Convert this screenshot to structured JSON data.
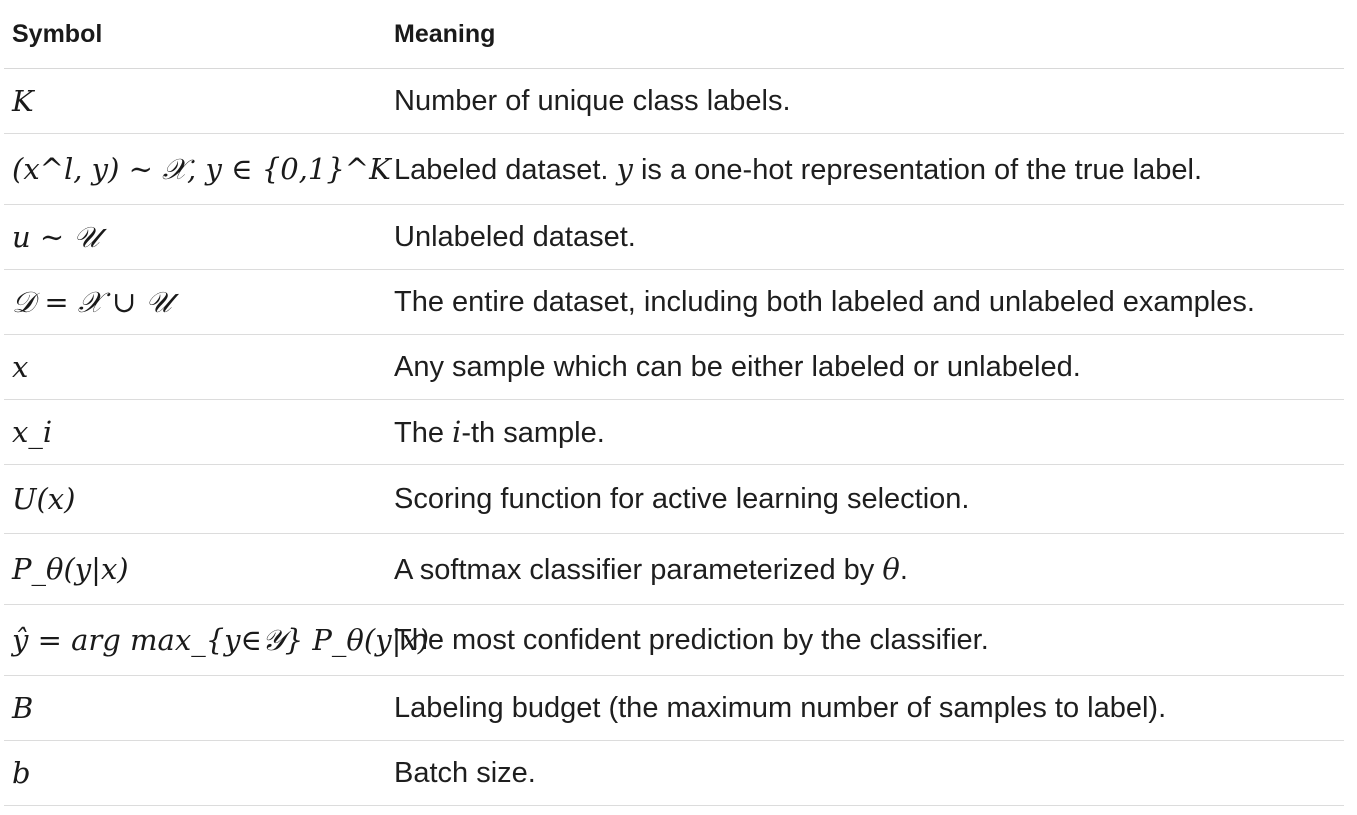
{
  "header": {
    "symbol": "Symbol",
    "meaning": "Meaning"
  },
  "rows": [
    {
      "symbol": "K",
      "meaning": "Number of unique class labels."
    },
    {
      "symbol": "(x^l, y) ∼ 𝒳, y ∈ {0,1}^K",
      "meaning_pre": "Labeled dataset.",
      "meaning_var": "y",
      "meaning_post": "is a one-hot representation of the true label."
    },
    {
      "symbol": "u ∼ 𝒰",
      "meaning": "Unlabeled dataset."
    },
    {
      "symbol": "𝒟 = 𝒳 ∪ 𝒰",
      "meaning": "The entire dataset, including both labeled and unlabeled examples."
    },
    {
      "symbol": "x",
      "meaning": "Any sample which can be either labeled or unlabeled."
    },
    {
      "symbol": "x_i",
      "meaning_pre": "The",
      "meaning_var": "i",
      "meaning_post": "-th sample."
    },
    {
      "symbol": "U(x)",
      "meaning": "Scoring function for active learning selection."
    },
    {
      "symbol": "P_θ(y|x)",
      "meaning_pre": "A softmax classifier parameterized by",
      "meaning_var": "θ",
      "meaning_post": "."
    },
    {
      "symbol": "ŷ = arg max_{y∈𝒴} P_θ(y|x)",
      "meaning": "The most confident prediction by the classifier."
    },
    {
      "symbol": "B",
      "meaning": "Labeling budget (the maximum number of samples to label)."
    },
    {
      "symbol": "b",
      "meaning": "Batch size."
    }
  ]
}
